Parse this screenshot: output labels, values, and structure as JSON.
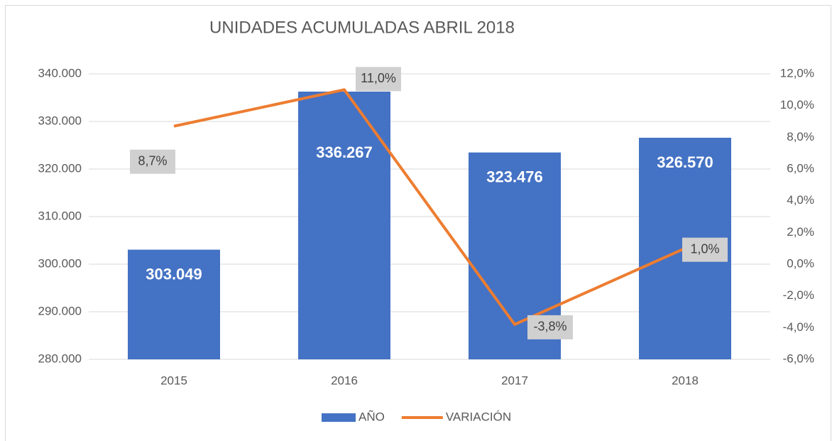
{
  "chart_data": {
    "type": "bar",
    "title": "UNIDADES ACUMULADAS ABRIL 2018",
    "categories": [
      "2015",
      "2016",
      "2017",
      "2018"
    ],
    "series": [
      {
        "name": "AÑO",
        "type": "bar",
        "color": "#4472c4",
        "values": [
          303049,
          336267,
          323476,
          326570
        ],
        "value_labels": [
          "303.049",
          "336.267",
          "323.476",
          "326.570"
        ]
      },
      {
        "name": "VARIACIÓN",
        "type": "line",
        "axis": "y2",
        "color": "#ed7d31",
        "values": [
          8.7,
          11.0,
          -3.8,
          1.0
        ],
        "value_labels": [
          "8,7%",
          "11,0%",
          "-3,8%",
          "1,0%"
        ]
      }
    ],
    "ylim": [
      280000,
      340000
    ],
    "yticks": [
      {
        "value": 280000,
        "label": "280.000"
      },
      {
        "value": 290000,
        "label": "290.000"
      },
      {
        "value": 300000,
        "label": "300.000"
      },
      {
        "value": 310000,
        "label": "310.000"
      },
      {
        "value": 320000,
        "label": "320.000"
      },
      {
        "value": 330000,
        "label": "330.000"
      },
      {
        "value": 340000,
        "label": "340.000"
      }
    ],
    "y2lim": [
      -6,
      12
    ],
    "y2ticks": [
      {
        "value": -6,
        "label": "-6,0%"
      },
      {
        "value": -4,
        "label": "-4,0%"
      },
      {
        "value": -2,
        "label": "-2,0%"
      },
      {
        "value": 0,
        "label": "0,0%"
      },
      {
        "value": 2,
        "label": "2,0%"
      },
      {
        "value": 4,
        "label": "4,0%"
      },
      {
        "value": 6,
        "label": "6,0%"
      },
      {
        "value": 8,
        "label": "8,0%"
      },
      {
        "value": 10,
        "label": "10,0%"
      },
      {
        "value": 12,
        "label": "12,0%"
      }
    ],
    "grid": true,
    "legend": "bottom"
  }
}
